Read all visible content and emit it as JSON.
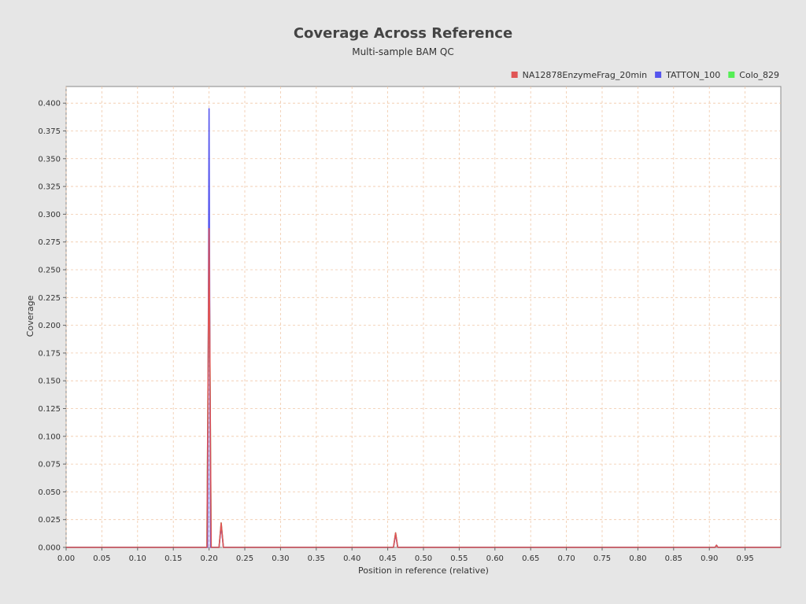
{
  "chart_data": {
    "type": "line",
    "title": "Coverage Across Reference",
    "subtitle": "Multi-sample BAM QC",
    "xlabel": "Position in reference (relative)",
    "ylabel": "Coverage",
    "xlim": [
      0,
      1.0
    ],
    "ylim": [
      0,
      0.415
    ],
    "xticks": [
      "0.00",
      "0.05",
      "0.10",
      "0.15",
      "0.20",
      "0.25",
      "0.30",
      "0.35",
      "0.40",
      "0.45",
      "0.50",
      "0.55",
      "0.60",
      "0.65",
      "0.70",
      "0.75",
      "0.80",
      "0.85",
      "0.90",
      "0.95"
    ],
    "xtick_values": [
      0,
      0.05,
      0.1,
      0.15,
      0.2,
      0.25,
      0.3,
      0.35,
      0.4,
      0.45,
      0.5,
      0.55,
      0.6,
      0.65,
      0.7,
      0.75,
      0.8,
      0.85,
      0.9,
      0.95
    ],
    "yticks": [
      "0.000",
      "0.025",
      "0.050",
      "0.075",
      "0.100",
      "0.125",
      "0.150",
      "0.175",
      "0.200",
      "0.225",
      "0.250",
      "0.275",
      "0.300",
      "0.325",
      "0.350",
      "0.375",
      "0.400"
    ],
    "ytick_values": [
      0,
      0.025,
      0.05,
      0.075,
      0.1,
      0.125,
      0.15,
      0.175,
      0.2,
      0.225,
      0.25,
      0.275,
      0.3,
      0.325,
      0.35,
      0.375,
      0.4
    ],
    "grid": true,
    "legend_position": "top-right",
    "series": [
      {
        "name": "Colo_829",
        "color": "#55ee55",
        "x": [
          0,
          0.197,
          0.2,
          0.203,
          0.214,
          0.217,
          0.22,
          0.458,
          0.461,
          0.464,
          0.908,
          0.91,
          0.912,
          1.0
        ],
        "y": [
          0,
          0,
          0.28,
          0,
          0,
          0.022,
          0,
          0,
          0.013,
          0,
          0,
          0.002,
          0,
          0
        ]
      },
      {
        "name": "TATTON_100",
        "color": "#5555ee",
        "x": [
          0,
          0.198,
          0.2,
          0.202,
          0.214,
          0.217,
          0.22,
          0.458,
          0.461,
          0.464,
          0.908,
          0.91,
          0.912,
          1.0
        ],
        "y": [
          0,
          0,
          0.395,
          0,
          0,
          0.02,
          0,
          0,
          0.012,
          0,
          0,
          0.002,
          0,
          0
        ]
      },
      {
        "name": "NA12878EnzymeFrag_20min",
        "color": "#e05555",
        "x": [
          0,
          0.197,
          0.2,
          0.203,
          0.214,
          0.217,
          0.22,
          0.458,
          0.461,
          0.464,
          0.908,
          0.91,
          0.912,
          1.0
        ],
        "y": [
          0,
          0,
          0.287,
          0,
          0,
          0.022,
          0,
          0,
          0.013,
          0,
          0,
          0.002,
          0,
          0
        ]
      }
    ],
    "legend_order": [
      "NA12878EnzymeFrag_20min",
      "TATTON_100",
      "Colo_829"
    ]
  }
}
